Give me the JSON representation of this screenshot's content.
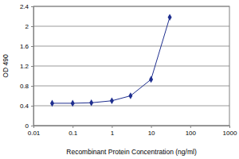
{
  "chart_data": {
    "type": "line",
    "x_label": "Recombinant Protein Concentration (ng/ml)",
    "y_label": "OD 490",
    "x": [
      0.03,
      0.1,
      0.3,
      1,
      3,
      10,
      30
    ],
    "values": [
      0.45,
      0.45,
      0.46,
      0.5,
      0.6,
      0.93,
      2.18
    ],
    "color": "#1f2f8f",
    "marker": "diamond",
    "log": "x",
    "grid": true,
    "xlim": [
      0.01,
      1000
    ],
    "xticks": [
      0.01,
      0.1,
      1,
      10,
      100,
      1000
    ],
    "ylim": [
      0,
      2.4
    ],
    "yticks": [
      0,
      0.4,
      0.8,
      1.2,
      1.6,
      2,
      2.4
    ]
  }
}
